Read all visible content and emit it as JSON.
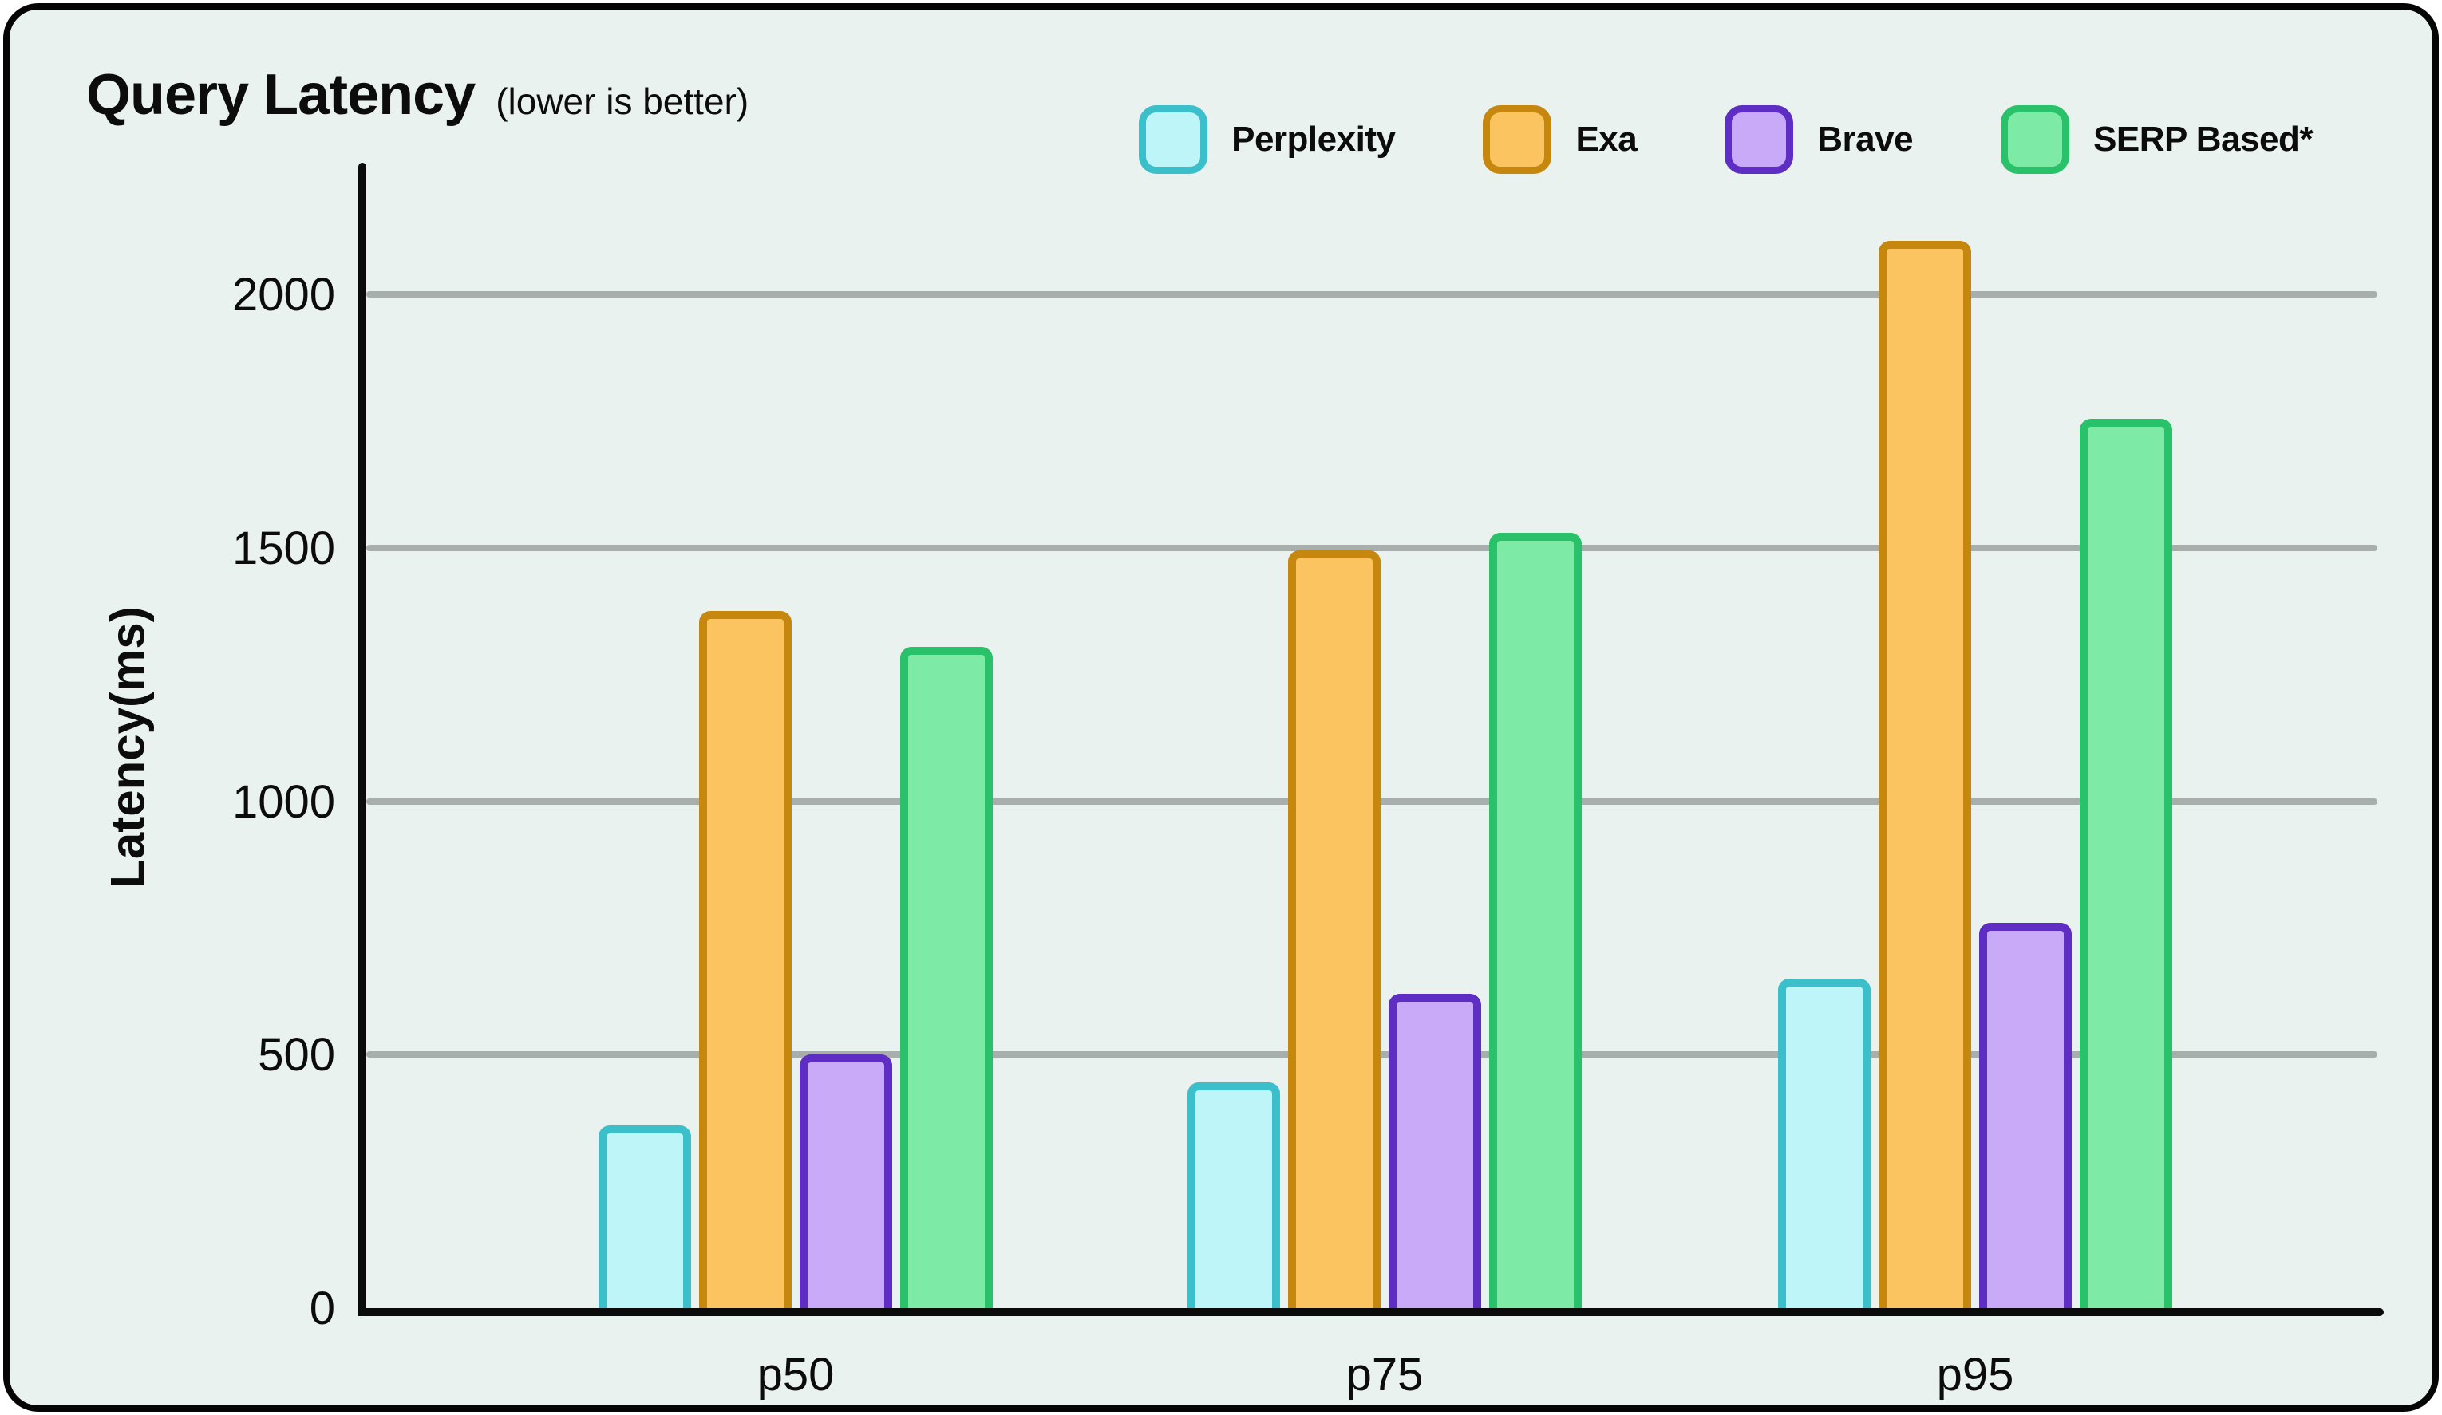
{
  "title": "Query Latency",
  "subtitle": "(lower is better)",
  "chart_data": {
    "type": "bar",
    "categories": [
      "p50",
      "p75",
      "p95"
    ],
    "series": [
      {
        "name": "Perplexity",
        "values": [
          360,
          445,
          650
        ],
        "fill": "#bef5f8",
        "stroke": "#3bbfca"
      },
      {
        "name": "Exa",
        "values": [
          1375,
          1495,
          2105
        ],
        "fill": "#fcc460",
        "stroke": "#c6870f"
      },
      {
        "name": "Brave",
        "values": [
          500,
          620,
          760
        ],
        "fill": "#c9aaf8",
        "stroke": "#5e2dc4"
      },
      {
        "name": "SERP Based*",
        "values": [
          1305,
          1530,
          1755
        ],
        "fill": "#7deba5",
        "stroke": "#29c169"
      }
    ],
    "title": "Query Latency",
    "xlabel": "",
    "ylabel": "Latency(ms)",
    "yticks": [
      0,
      500,
      1000,
      1500,
      2000
    ],
    "ylim": [
      0,
      2260
    ],
    "grid": true,
    "legend_position": "top-right",
    "colors": {
      "background": "#e9f2ee",
      "panel_border": "#050505",
      "axis": "#0b0b0b",
      "gridline": "#a7aeab",
      "text": "#0c0c0c"
    }
  }
}
